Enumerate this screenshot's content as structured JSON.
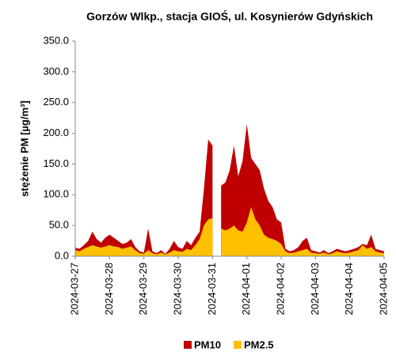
{
  "chart_data": {
    "type": "area",
    "title": "Gorzów Wlkp., stacja GIOŚ, ul. Kosynierów Gdyńskich",
    "y_label": "stężenie PM [µg/m³]",
    "categories": [
      "2024-03-27",
      null,
      null,
      null,
      null,
      null,
      null,
      null,
      "2024-03-28",
      null,
      null,
      null,
      null,
      null,
      null,
      null,
      "2024-03-29",
      null,
      null,
      null,
      null,
      null,
      null,
      null,
      "2024-03-30",
      null,
      null,
      null,
      null,
      null,
      null,
      null,
      "2024-03-31",
      null,
      null,
      null,
      null,
      null,
      null,
      null,
      "2024-04-01",
      null,
      null,
      null,
      null,
      null,
      null,
      null,
      "2024-04-02",
      null,
      null,
      null,
      null,
      null,
      null,
      null,
      "2024-04-03",
      null,
      null,
      null,
      null,
      null,
      null,
      null,
      "2024-04-04",
      null,
      null,
      null,
      null,
      null,
      null,
      null,
      "2024-04-05"
    ],
    "series": [
      {
        "name": "PM10",
        "color": "#c00000",
        "values": [
          14,
          12,
          18,
          25,
          40,
          28,
          22,
          30,
          35,
          30,
          25,
          20,
          22,
          28,
          15,
          8,
          6,
          45,
          8,
          5,
          10,
          4,
          12,
          25,
          15,
          12,
          25,
          18,
          30,
          40,
          110,
          190,
          180,
          null,
          115,
          120,
          140,
          180,
          130,
          155,
          215,
          160,
          150,
          140,
          110,
          90,
          80,
          60,
          55,
          12,
          8,
          10,
          15,
          25,
          30,
          10,
          8,
          6,
          10,
          5,
          8,
          12,
          10,
          8,
          10,
          12,
          15,
          20,
          18,
          35,
          12,
          10,
          8
        ]
      },
      {
        "name": "PM2.5",
        "color": "#ffc000",
        "values": [
          10,
          8,
          12,
          15,
          18,
          16,
          14,
          16,
          18,
          16,
          15,
          12,
          14,
          16,
          10,
          5,
          4,
          10,
          5,
          3,
          6,
          3,
          6,
          10,
          8,
          7,
          12,
          10,
          18,
          28,
          50,
          60,
          62,
          null,
          45,
          42,
          45,
          50,
          42,
          40,
          55,
          80,
          60,
          50,
          35,
          30,
          28,
          25,
          20,
          8,
          5,
          6,
          8,
          10,
          12,
          6,
          5,
          4,
          6,
          3,
          5,
          8,
          6,
          5,
          6,
          8,
          10,
          18,
          12,
          15,
          8,
          6,
          5
        ]
      }
    ],
    "ylim": [
      0,
      350
    ],
    "yticks": [
      {
        "value": 0,
        "label": "0.0"
      },
      {
        "value": 50,
        "label": "50.0"
      },
      {
        "value": 100,
        "label": "100.0"
      },
      {
        "value": 150,
        "label": "150.0"
      },
      {
        "value": 200,
        "label": "200.0"
      },
      {
        "value": 250,
        "label": "250.0"
      },
      {
        "value": 300,
        "label": "300.0"
      },
      {
        "value": 350,
        "label": "350.0"
      }
    ],
    "grid": false,
    "legend": "bottom"
  }
}
